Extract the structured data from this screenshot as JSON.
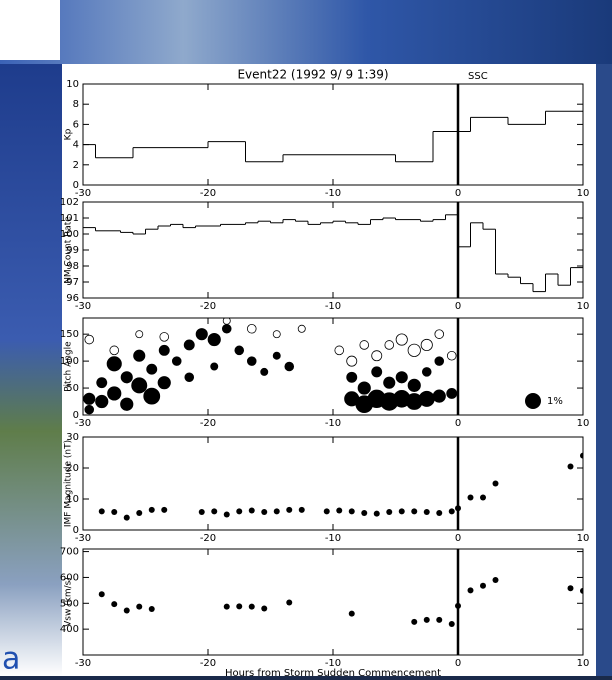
{
  "background_text": "a",
  "chart_data": [
    {
      "type": "step",
      "title": "Event22 (1992 9/ 9  1:39)",
      "annotation": "SSC",
      "ylabel": "Kp",
      "x": [
        -30,
        -29,
        -26,
        -20,
        -17,
        -14,
        -5,
        -2,
        1,
        4,
        7
      ],
      "values": [
        4,
        2.7,
        3.7,
        4.3,
        2.3,
        3,
        2.3,
        5.3,
        6.7,
        6,
        7.3
      ],
      "xlim": [
        -30,
        10
      ],
      "xticks": [
        -30,
        -20,
        -10,
        0,
        10
      ],
      "ylim": [
        0,
        10
      ],
      "yticks": [
        0,
        2,
        4,
        6,
        8,
        10
      ],
      "vline": 0
    },
    {
      "type": "step",
      "ylabel": "NM Count Rate",
      "x": [
        -30,
        -29,
        -28,
        -27,
        -26,
        -25,
        -24,
        -23,
        -22,
        -21,
        -20,
        -19,
        -18,
        -17,
        -16,
        -15,
        -14,
        -13,
        -12,
        -11,
        -10,
        -9,
        -8,
        -7,
        -6,
        -5,
        -4,
        -3,
        -2,
        -1,
        0,
        1,
        2,
        3,
        4,
        5,
        6,
        7,
        8,
        9
      ],
      "values": [
        100.4,
        100.2,
        100.2,
        100.1,
        100.0,
        100.3,
        100.5,
        100.6,
        100.4,
        100.5,
        100.5,
        100.6,
        100.6,
        100.7,
        100.8,
        100.7,
        100.9,
        100.8,
        100.6,
        100.7,
        100.8,
        100.7,
        100.6,
        100.9,
        101.0,
        100.9,
        100.9,
        100.8,
        100.9,
        101.2,
        99.2,
        100.7,
        100.3,
        97.5,
        97.3,
        96.9,
        96.4,
        97.5,
        96.8,
        97.9
      ],
      "xlim": [
        -30,
        10
      ],
      "xticks": [
        -30,
        -20,
        -10,
        0,
        10
      ],
      "ylim": [
        96,
        102
      ],
      "yticks": [
        96,
        97,
        98,
        99,
        100,
        101,
        102
      ],
      "vline": 0
    },
    {
      "type": "bubble",
      "ylabel": "Pitch Angle",
      "series": [
        {
          "fill": "#000000",
          "x": [
            -29.5,
            -29.5,
            -28.5,
            -28.5,
            -27.5,
            -27.5,
            -26.5,
            -26.5,
            -25.5,
            -25.5,
            -24.5,
            -24.5,
            -23.5,
            -23.5,
            -22.5,
            -21.5,
            -21.5,
            -20.5,
            -19.5,
            -19.5,
            -18.5,
            -17.5,
            -16.5,
            -15.5,
            -14.5,
            -13.5,
            -8.5,
            -8.5,
            -7.5,
            -7.5,
            -6.5,
            -6.5,
            -5.5,
            -5.5,
            -4.5,
            -4.5,
            -3.5,
            -3.5,
            -2.5,
            -2.5,
            -1.5,
            -1.5,
            -0.5
          ],
          "y": [
            30,
            10,
            60,
            25,
            95,
            40,
            70,
            20,
            110,
            55,
            85,
            35,
            120,
            60,
            100,
            130,
            70,
            150,
            140,
            90,
            160,
            120,
            100,
            80,
            110,
            90,
            30,
            70,
            20,
            50,
            30,
            80,
            25,
            60,
            30,
            70,
            25,
            55,
            30,
            80,
            35,
            100,
            40
          ],
          "size": [
            0.5,
            0.3,
            0.4,
            0.6,
            0.8,
            0.7,
            0.5,
            0.6,
            0.5,
            0.9,
            0.4,
            1.0,
            0.4,
            0.6,
            0.3,
            0.4,
            0.3,
            0.5,
            0.6,
            0.2,
            0.3,
            0.3,
            0.3,
            0.2,
            0.2,
            0.3,
            0.8,
            0.4,
            1.1,
            0.6,
            1.2,
            0.4,
            1.2,
            0.5,
            1.1,
            0.5,
            1.0,
            0.6,
            0.9,
            0.3,
            0.6,
            0.3,
            0.4
          ]
        },
        {
          "fill": "none",
          "x": [
            -29.5,
            -27.5,
            -25.5,
            -23.5,
            -18.5,
            -16.5,
            -14.5,
            -12.5,
            -9.5,
            -8.5,
            -7.5,
            -6.5,
            -5.5,
            -4.5,
            -3.5,
            -2.5,
            -1.5,
            -0.5
          ],
          "y": [
            140,
            120,
            150,
            145,
            175,
            160,
            150,
            160,
            120,
            100,
            130,
            110,
            130,
            140,
            120,
            130,
            150,
            110
          ],
          "size": [
            0.3,
            0.3,
            0.2,
            0.3,
            0.2,
            0.3,
            0.2,
            0.2,
            0.3,
            0.4,
            0.3,
            0.4,
            0.3,
            0.5,
            0.6,
            0.5,
            0.3,
            0.3
          ]
        }
      ],
      "size_legend": {
        "label": "1%",
        "size": 1
      },
      "xlim": [
        -30,
        10
      ],
      "xticks": [
        -30,
        -20,
        -10,
        0,
        10
      ],
      "ylim": [
        0,
        180
      ],
      "yticks": [
        0,
        50,
        100,
        150
      ],
      "vline": 0
    },
    {
      "type": "scatter",
      "ylabel": "IMF Magnitude (nT)",
      "x": [
        -28.5,
        -27.5,
        -26.5,
        -25.5,
        -24.5,
        -23.5,
        -20.5,
        -19.5,
        -18.5,
        -17.5,
        -16.5,
        -15.5,
        -14.5,
        -13.5,
        -12.5,
        -10.5,
        -9.5,
        -8.5,
        -7.5,
        -6.5,
        -5.5,
        -4.5,
        -3.5,
        -2.5,
        -1.5,
        -0.5,
        0,
        1,
        2,
        3,
        9,
        10
      ],
      "values": [
        6,
        5.8,
        4,
        5.5,
        6.5,
        6.5,
        5.8,
        6,
        5,
        6,
        6.3,
        5.8,
        6,
        6.5,
        6.5,
        6,
        6.3,
        6,
        5.5,
        5.3,
        5.8,
        6,
        6,
        5.8,
        5.5,
        6,
        7,
        10.5,
        10.5,
        15,
        20.5,
        24
      ],
      "xlim": [
        -30,
        10
      ],
      "xticks": [
        -30,
        -20,
        -10,
        0,
        10
      ],
      "ylim": [
        0,
        30
      ],
      "yticks": [
        0,
        10,
        20,
        30
      ],
      "vline": 0
    },
    {
      "type": "scatter",
      "ylabel": "Vsw (km/s)",
      "xlabel": "Hours from Storm Sudden Commencement",
      "x": [
        -28.5,
        -27.5,
        -26.5,
        -25.5,
        -24.5,
        -18.5,
        -17.5,
        -16.5,
        -15.5,
        -13.5,
        -8.5,
        -3.5,
        -2.5,
        -1.5,
        -0.5,
        0,
        1,
        2,
        3,
        9,
        10
      ],
      "values": [
        535,
        497,
        472,
        487,
        478,
        487,
        488,
        487,
        480,
        503,
        460,
        428,
        436,
        436,
        420,
        490,
        550,
        568,
        590,
        558,
        548
      ],
      "xlim": [
        -30,
        10
      ],
      "xticks": [
        -30,
        -20,
        -10,
        0,
        10
      ],
      "ylim": [
        300,
        710
      ],
      "yticks": [
        400,
        500,
        600,
        700
      ],
      "vline": 0
    }
  ]
}
